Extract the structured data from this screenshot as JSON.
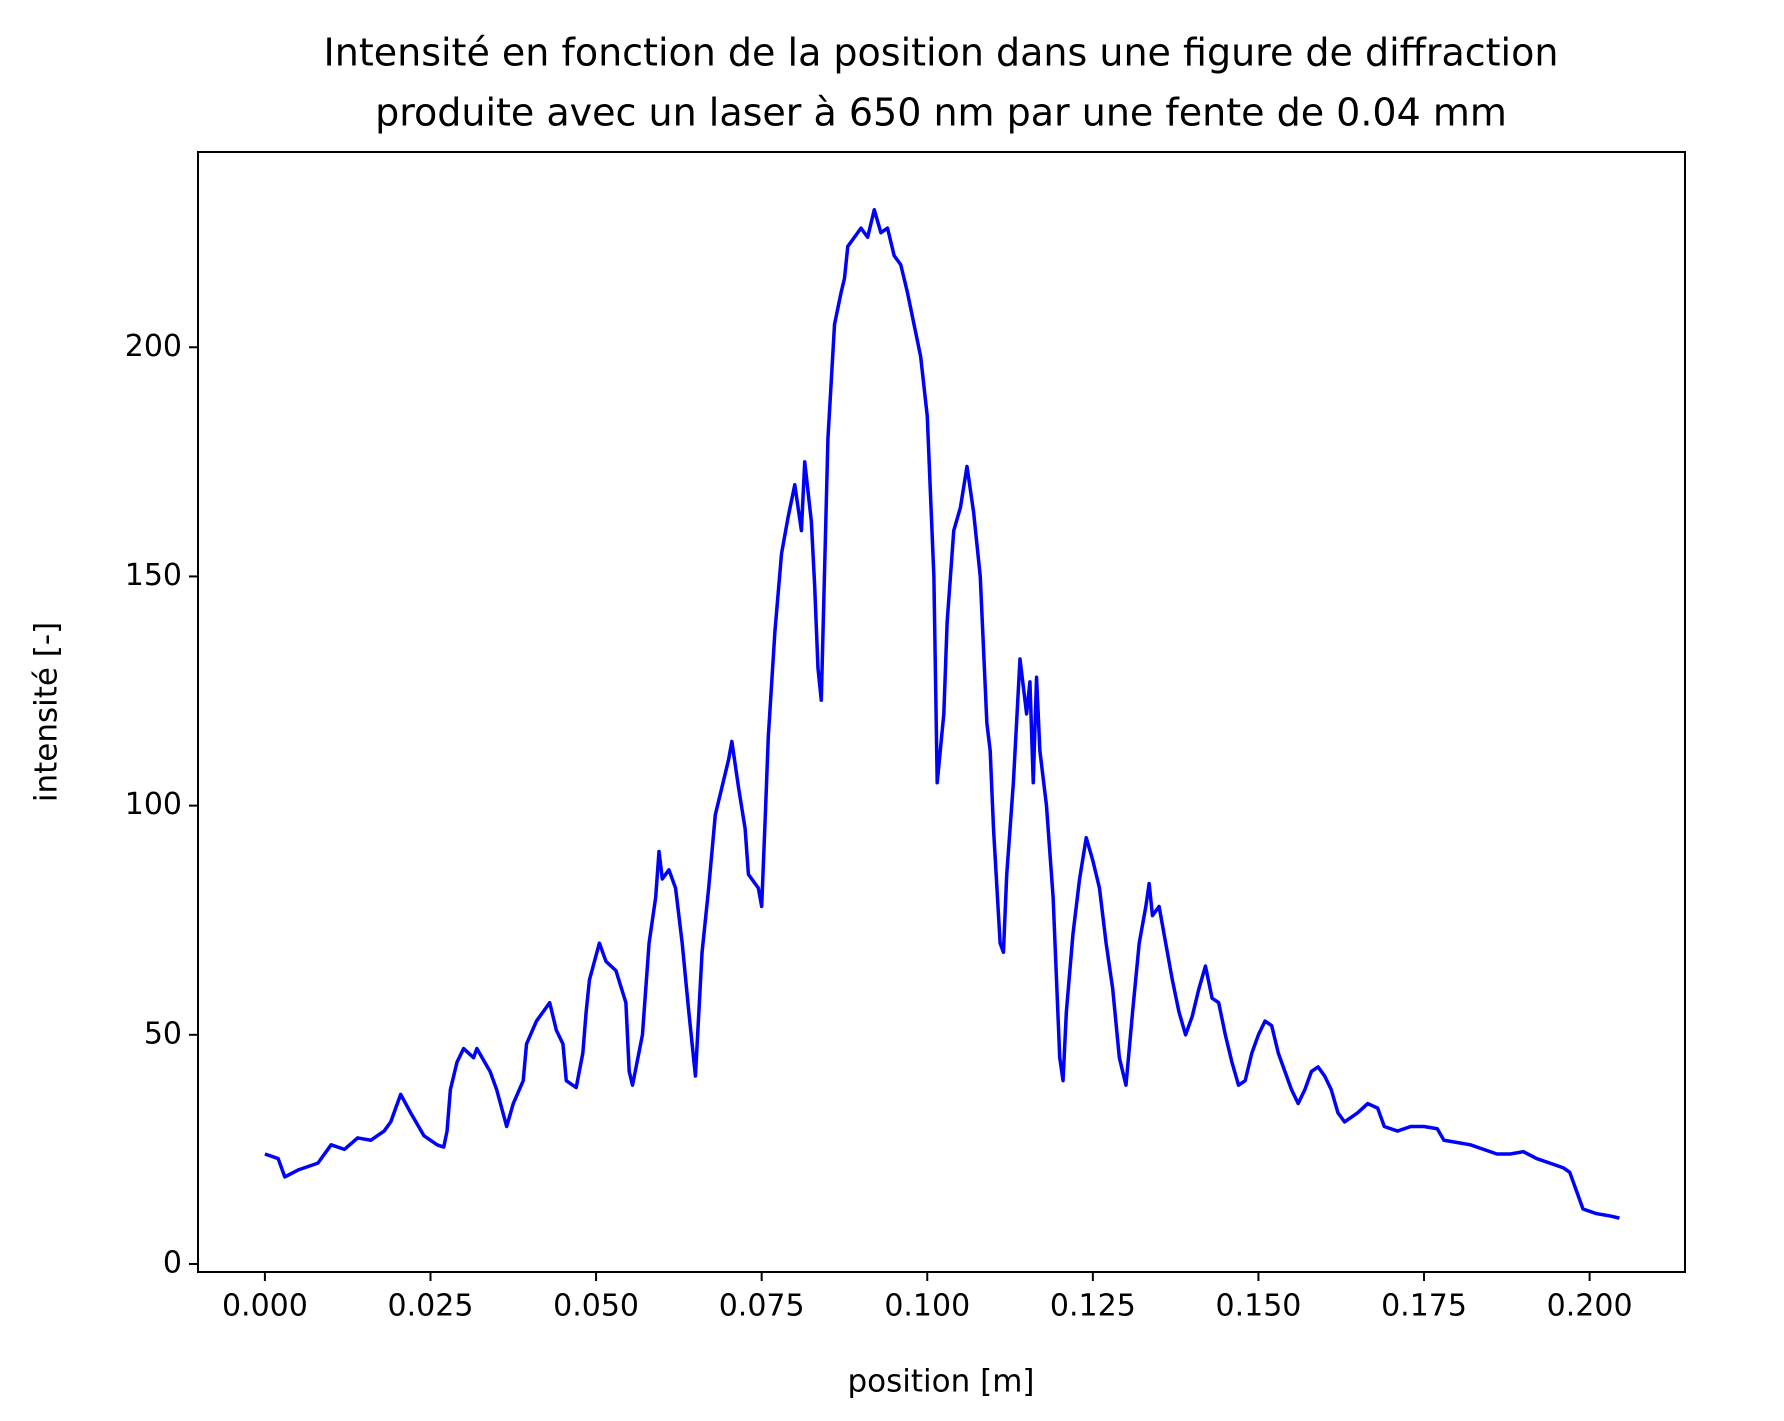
{
  "chart_data": {
    "type": "line",
    "title": [
      "Intensité en fonction de la position dans une figure de diffraction",
      "produite avec un laser à 650 nm par une fente de 0.04 mm"
    ],
    "xlabel": "position [m]",
    "ylabel": "intensité [-]",
    "color": "#0000ff",
    "xlim": [
      -0.0101,
      0.2144
    ],
    "ylim": [
      -1.75,
      242.6
    ],
    "xticks": [
      {
        "value": 0,
        "label": "0.000"
      },
      {
        "value": 0.025,
        "label": "0.025"
      },
      {
        "value": 0.05,
        "label": "0.050"
      },
      {
        "value": 0.075,
        "label": "0.075"
      },
      {
        "value": 0.1,
        "label": "0.100"
      },
      {
        "value": 0.125,
        "label": "0.125"
      },
      {
        "value": 0.15,
        "label": "0.150"
      },
      {
        "value": 0.175,
        "label": "0.175"
      },
      {
        "value": 0.2,
        "label": "0.200"
      }
    ],
    "yticks": [
      0,
      50,
      100,
      150,
      200
    ],
    "x": [
      0,
      0.002,
      0.003,
      0.005,
      0.008,
      0.01,
      0.012,
      0.014,
      0.016,
      0.018,
      0.019,
      0.0205,
      0.022,
      0.024,
      0.026,
      0.027,
      0.0275,
      0.028,
      0.029,
      0.03,
      0.0315,
      0.032,
      0.034,
      0.035,
      0.0365,
      0.0375,
      0.039,
      0.0395,
      0.041,
      0.042,
      0.043,
      0.044,
      0.045,
      0.0455,
      0.047,
      0.048,
      0.0485,
      0.049,
      0.0505,
      0.0515,
      0.053,
      0.0545,
      0.055,
      0.0555,
      0.057,
      0.058,
      0.059,
      0.0595,
      0.06,
      0.061,
      0.062,
      0.063,
      0.064,
      0.065,
      0.066,
      0.067,
      0.068,
      0.069,
      0.07,
      0.0705,
      0.0715,
      0.0725,
      0.073,
      0.0745,
      0.075,
      0.0755,
      0.076,
      0.077,
      0.078,
      0.079,
      0.08,
      0.081,
      0.0815,
      0.0825,
      0.083,
      0.0835,
      0.084,
      0.085,
      0.086,
      0.087,
      0.0875,
      0.088,
      0.089,
      0.09,
      0.091,
      0.092,
      0.093,
      0.094,
      0.095,
      0.096,
      0.097,
      0.098,
      0.099,
      0.1,
      0.101,
      0.1015,
      0.1025,
      0.103,
      0.104,
      0.105,
      0.106,
      0.107,
      0.108,
      0.109,
      0.1095,
      0.11,
      0.111,
      0.1115,
      0.112,
      0.113,
      0.114,
      0.115,
      0.1155,
      0.116,
      0.1165,
      0.117,
      0.118,
      0.119,
      0.12,
      0.1205,
      0.121,
      0.122,
      0.123,
      0.124,
      0.125,
      0.126,
      0.127,
      0.128,
      0.129,
      0.13,
      0.131,
      0.132,
      0.133,
      0.1335,
      0.134,
      0.135,
      0.136,
      0.137,
      0.138,
      0.139,
      0.14,
      0.141,
      0.142,
      0.143,
      0.144,
      0.145,
      0.146,
      0.147,
      0.148,
      0.149,
      0.15,
      0.151,
      0.152,
      0.153,
      0.154,
      0.155,
      0.156,
      0.157,
      0.158,
      0.159,
      0.16,
      0.161,
      0.162,
      0.163,
      0.165,
      0.1665,
      0.168,
      0.169,
      0.171,
      0.173,
      0.175,
      0.177,
      0.178,
      0.18,
      0.182,
      0.184,
      0.186,
      0.188,
      0.19,
      0.192,
      0.194,
      0.196,
      0.197,
      0.198,
      0.199,
      0.201,
      0.203,
      0.2045
    ],
    "values": [
      24,
      23,
      19,
      20.5,
      22,
      26,
      25,
      27.5,
      27,
      29,
      31,
      37,
      33,
      28,
      26,
      25.5,
      29,
      38,
      44,
      47,
      45,
      47,
      42,
      38,
      30,
      35,
      40,
      48,
      53,
      55,
      57,
      51,
      48,
      40,
      38.5,
      46,
      55,
      62,
      70,
      66,
      64,
      57,
      42,
      39,
      50,
      70,
      80,
      90,
      84,
      86,
      82,
      70,
      55,
      41,
      68,
      82,
      98,
      104,
      110,
      114,
      104,
      95,
      85,
      82,
      78,
      96,
      115,
      138,
      155,
      163,
      170,
      160,
      175,
      162,
      148,
      130,
      123,
      180,
      205,
      212,
      215,
      222,
      224,
      226,
      224,
      230,
      225,
      226,
      220,
      218,
      212,
      205,
      198,
      185,
      150,
      105,
      120,
      140,
      160,
      165,
      174,
      164,
      150,
      118,
      112,
      95,
      70,
      68,
      85,
      105,
      132,
      120,
      127,
      105,
      128,
      112,
      100,
      80,
      45,
      40,
      55,
      72,
      84,
      93,
      88,
      82,
      70,
      60,
      45,
      39,
      55,
      70,
      78,
      83,
      76,
      78,
      70,
      62,
      55,
      50,
      54,
      60,
      65,
      58,
      57,
      50,
      44,
      39,
      40,
      46,
      50,
      53,
      52,
      46,
      42,
      38,
      35,
      38,
      42,
      43,
      41,
      38,
      33,
      31,
      33,
      35,
      34,
      30,
      29,
      30,
      30,
      29.5,
      27,
      26.5,
      26,
      25,
      24,
      24,
      24.5,
      23,
      22,
      21,
      20,
      16,
      12,
      11,
      10.5,
      10
    ]
  }
}
